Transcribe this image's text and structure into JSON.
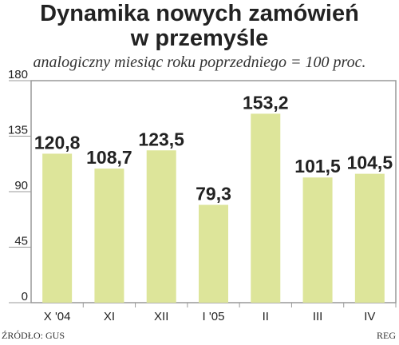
{
  "header": {
    "title_line1": "Dynamika nowych zamówień",
    "title_line2": "w przemyśle",
    "subtitle": "analogiczny miesiąc roku poprzedniego = 100 proc."
  },
  "footer": {
    "source": "ŹRÓDŁO: GUS",
    "credit": "REG"
  },
  "chart_data": {
    "type": "bar",
    "categories": [
      "X '04",
      "XI",
      "XII",
      "I '05",
      "II",
      "III",
      "IV"
    ],
    "values": [
      120.8,
      108.7,
      123.5,
      79.3,
      153.2,
      101.5,
      104.5
    ],
    "value_labels": [
      "120,8",
      "108,7",
      "123,5",
      "79,3",
      "153,2",
      "101,5",
      "104,5"
    ],
    "yticks": [
      0,
      45,
      90,
      135,
      180
    ],
    "ylim": [
      0,
      180
    ],
    "grid": false,
    "colors": {
      "bar": "#dde59a",
      "frame": "#999999",
      "text": "#222222"
    }
  }
}
